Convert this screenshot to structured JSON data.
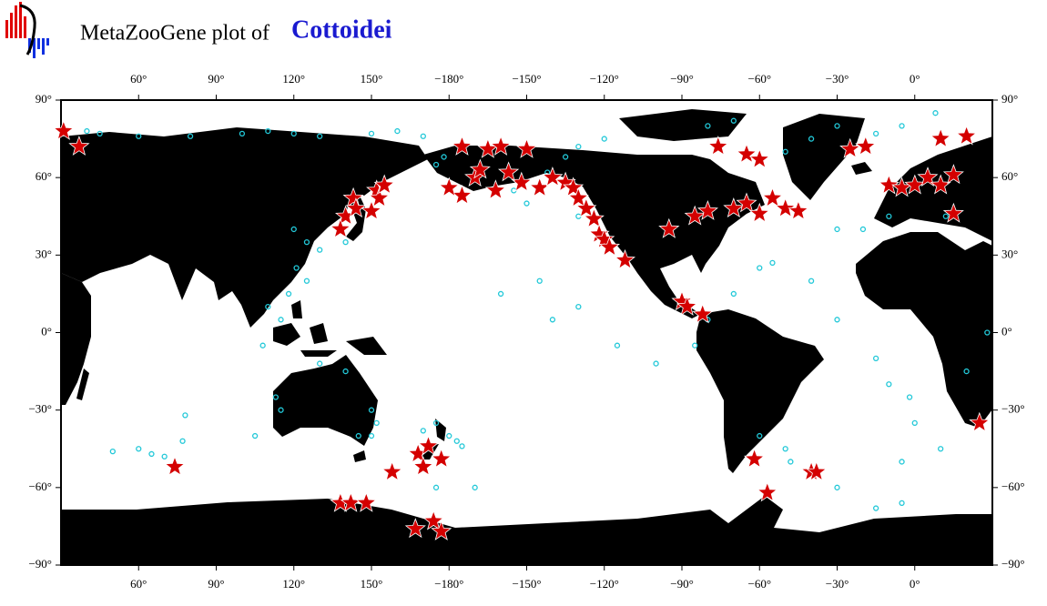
{
  "header": {
    "prefix": "MetaZooGene plot of",
    "taxon": "Cottoidei"
  },
  "map": {
    "xlim": [
      30,
      390
    ],
    "ylim": [
      -90,
      90
    ],
    "xticks": [
      {
        "value": 60,
        "label": "60°"
      },
      {
        "value": 90,
        "label": "90°"
      },
      {
        "value": 120,
        "label": "120°"
      },
      {
        "value": 150,
        "label": "150°"
      },
      {
        "value": 180,
        "label": "−180°"
      },
      {
        "value": 210,
        "label": "−150°"
      },
      {
        "value": 240,
        "label": "−120°"
      },
      {
        "value": 270,
        "label": "−90°"
      },
      {
        "value": 300,
        "label": "−60°"
      },
      {
        "value": 330,
        "label": "−30°"
      },
      {
        "value": 360,
        "label": "0°"
      }
    ],
    "yticks": [
      {
        "value": 90,
        "label": "90°"
      },
      {
        "value": 60,
        "label": "60°"
      },
      {
        "value": 30,
        "label": "30°"
      },
      {
        "value": 0,
        "label": "0°"
      },
      {
        "value": -30,
        "label": "−30°"
      },
      {
        "value": -60,
        "label": "−60°"
      },
      {
        "value": -90,
        "label": "−90°"
      }
    ],
    "star_color": "#d40000",
    "ring_color": "#22c8d8",
    "rings": [
      [
        40,
        78
      ],
      [
        45,
        77
      ],
      [
        60,
        76
      ],
      [
        80,
        76
      ],
      [
        100,
        77
      ],
      [
        110,
        78
      ],
      [
        120,
        77
      ],
      [
        130,
        76
      ],
      [
        150,
        77
      ],
      [
        160,
        78
      ],
      [
        170,
        76
      ],
      [
        120,
        40
      ],
      [
        125,
        35
      ],
      [
        140,
        35
      ],
      [
        130,
        32
      ],
      [
        121,
        25
      ],
      [
        125,
        20
      ],
      [
        118,
        15
      ],
      [
        115,
        5
      ],
      [
        110,
        10
      ],
      [
        108,
        -5
      ],
      [
        115,
        -30
      ],
      [
        113,
        -25
      ],
      [
        130,
        -12
      ],
      [
        140,
        -15
      ],
      [
        150,
        -30
      ],
      [
        152,
        -35
      ],
      [
        145,
        -40
      ],
      [
        150,
        -40
      ],
      [
        105,
        -40
      ],
      [
        50,
        -46
      ],
      [
        60,
        -45
      ],
      [
        65,
        -47
      ],
      [
        70,
        -48
      ],
      [
        78,
        -32
      ],
      [
        77,
        -42
      ],
      [
        170,
        -38
      ],
      [
        175,
        -35
      ],
      [
        180,
        -40
      ],
      [
        183,
        -42
      ],
      [
        185,
        -44
      ],
      [
        175,
        -60
      ],
      [
        190,
        -60
      ],
      [
        215,
        20
      ],
      [
        200,
        15
      ],
      [
        230,
        10
      ],
      [
        220,
        5
      ],
      [
        245,
        -5
      ],
      [
        260,
        -12
      ],
      [
        275,
        -5
      ],
      [
        280,
        5
      ],
      [
        290,
        15
      ],
      [
        300,
        25
      ],
      [
        305,
        27
      ],
      [
        320,
        20
      ],
      [
        330,
        5
      ],
      [
        345,
        -10
      ],
      [
        350,
        -20
      ],
      [
        358,
        -25
      ],
      [
        360,
        -35
      ],
      [
        370,
        -45
      ],
      [
        355,
        -50
      ],
      [
        330,
        -60
      ],
      [
        300,
        -40
      ],
      [
        310,
        -45
      ],
      [
        312,
        -50
      ],
      [
        345,
        -68
      ],
      [
        355,
        -66
      ],
      [
        380,
        -15
      ],
      [
        388,
        0
      ],
      [
        372,
        45
      ],
      [
        350,
        45
      ],
      [
        340,
        40
      ],
      [
        330,
        40
      ],
      [
        310,
        70
      ],
      [
        320,
        75
      ],
      [
        330,
        80
      ],
      [
        345,
        77
      ],
      [
        355,
        80
      ],
      [
        368,
        85
      ],
      [
        290,
        82
      ],
      [
        280,
        80
      ],
      [
        240,
        75
      ],
      [
        230,
        72
      ],
      [
        225,
        68
      ],
      [
        218,
        62
      ],
      [
        205,
        55
      ],
      [
        210,
        50
      ],
      [
        230,
        45
      ],
      [
        175,
        65
      ],
      [
        178,
        68
      ]
    ],
    "stars": [
      [
        31,
        78
      ],
      [
        37,
        72
      ],
      [
        143,
        52
      ],
      [
        140,
        45
      ],
      [
        138,
        40
      ],
      [
        144,
        48
      ],
      [
        152,
        55
      ],
      [
        153,
        52
      ],
      [
        155,
        57
      ],
      [
        150,
        47
      ],
      [
        185,
        72
      ],
      [
        195,
        71
      ],
      [
        200,
        72
      ],
      [
        210,
        71
      ],
      [
        208,
        58
      ],
      [
        190,
        60
      ],
      [
        198,
        55
      ],
      [
        185,
        53
      ],
      [
        180,
        56
      ],
      [
        192,
        63
      ],
      [
        203,
        62
      ],
      [
        215,
        56
      ],
      [
        220,
        60
      ],
      [
        225,
        58
      ],
      [
        228,
        56
      ],
      [
        230,
        52
      ],
      [
        233,
        48
      ],
      [
        236,
        44
      ],
      [
        238,
        38
      ],
      [
        240,
        36
      ],
      [
        242,
        33
      ],
      [
        248,
        28
      ],
      [
        284,
        72
      ],
      [
        295,
        69
      ],
      [
        300,
        67
      ],
      [
        265,
        40
      ],
      [
        275,
        45
      ],
      [
        280,
        47
      ],
      [
        290,
        48
      ],
      [
        295,
        50
      ],
      [
        300,
        46
      ],
      [
        305,
        52
      ],
      [
        310,
        48
      ],
      [
        315,
        47
      ],
      [
        270,
        12
      ],
      [
        272,
        10
      ],
      [
        278,
        7
      ],
      [
        335,
        71
      ],
      [
        341,
        72
      ],
      [
        350,
        57
      ],
      [
        355,
        56
      ],
      [
        360,
        57
      ],
      [
        365,
        60
      ],
      [
        370,
        57
      ],
      [
        375,
        61
      ],
      [
        370,
        75
      ],
      [
        380,
        76
      ],
      [
        375,
        46
      ],
      [
        385,
        -35
      ],
      [
        74,
        -52
      ],
      [
        138,
        -66
      ],
      [
        142,
        -66
      ],
      [
        148,
        -66
      ],
      [
        158,
        -54
      ],
      [
        168,
        -47
      ],
      [
        170,
        -52
      ],
      [
        172,
        -44
      ],
      [
        177,
        -49
      ],
      [
        167,
        -76
      ],
      [
        174,
        -73
      ],
      [
        177,
        -77
      ],
      [
        298,
        -49
      ],
      [
        303,
        -62
      ],
      [
        320,
        -54
      ],
      [
        322,
        -54
      ]
    ]
  }
}
